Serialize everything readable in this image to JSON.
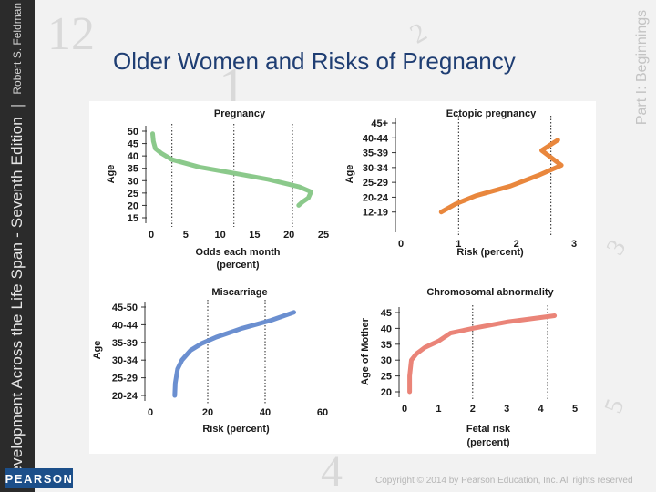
{
  "slide": {
    "title": "Older Women and Risks of Pregnancy",
    "sidebar_title": "Development Across the Life Span - Seventh Edition",
    "sidebar_separator": "|",
    "sidebar_author": "Robert S. Feldman",
    "part_label": "Part I: Beginnings",
    "publisher_logo": "PEARSON",
    "copyright": "Copyright © 2014 by Pearson Education, Inc. All rights reserved",
    "decorative_numbers": [
      "12",
      "1",
      "4",
      "2",
      "3",
      "5"
    ]
  },
  "colors": {
    "green": "#8bc98b",
    "orange": "#e9873d",
    "blue": "#6b8fd0",
    "red": "#ea8478",
    "axis": "#333333",
    "guide": "#222222",
    "text": "#1a1a1a"
  },
  "chart_data": [
    {
      "type": "line",
      "title": "Pregnancy",
      "xlabel": "Odds each month",
      "xlabel2": "(percent)",
      "ylabel": "Age",
      "xlim": [
        0,
        25
      ],
      "ylim": [
        15,
        50
      ],
      "xticks": [
        0,
        5,
        10,
        15,
        20,
        25
      ],
      "xtick_labels": [
        "0",
        "5",
        "10",
        "15",
        "20",
        "25"
      ],
      "yticks": [
        50,
        45,
        40,
        35,
        30,
        25,
        20,
        15
      ],
      "ytick_labels": [
        "50",
        "45",
        "40",
        "35",
        "30",
        "25",
        "20",
        "15"
      ],
      "ytick_dash": [
        false,
        false,
        true,
        true,
        false,
        false,
        true,
        true
      ],
      "guides_x": [
        3,
        12,
        20.5
      ],
      "x": [
        0.2,
        0.3,
        0.6,
        1.5,
        3,
        7,
        12,
        17,
        21.5,
        23.2,
        22.8,
        22.0,
        21.4
      ],
      "y": [
        49,
        46,
        43,
        41,
        38.5,
        35.5,
        33,
        30.5,
        27.5,
        25.5,
        23,
        21.5,
        20
      ]
    },
    {
      "type": "line",
      "title": "Ectopic pregnancy",
      "xlabel": "Risk (percent)",
      "ylabel": "Age",
      "xlim": [
        0,
        3
      ],
      "ylim": [
        0,
        7
      ],
      "xticks": [
        0,
        1,
        2,
        3
      ],
      "xtick_labels": [
        "0",
        "1",
        "2",
        "3"
      ],
      "yticks": [
        7,
        6,
        5,
        4,
        3,
        2,
        1
      ],
      "ytick_labels": [
        "45+",
        "40-44",
        "35-39",
        "30-34",
        "25-29",
        "20-24",
        "12-19"
      ],
      "guides_x": [
        1,
        2.6
      ],
      "x": [
        0.7,
        0.95,
        1.3,
        1.9,
        2.4,
        2.78,
        2.44,
        2.72
      ],
      "y": [
        1,
        1.55,
        2.1,
        2.75,
        3.5,
        4.15,
        5.15,
        5.85
      ]
    },
    {
      "type": "line",
      "title": "Miscarriage",
      "xlabel": "Risk (percent)",
      "ylabel": "Age",
      "xlim": [
        0,
        60
      ],
      "ylim": [
        1,
        6
      ],
      "xticks": [
        0,
        20,
        40,
        60
      ],
      "xtick_labels": [
        "0",
        "20",
        "40",
        "60"
      ],
      "yticks": [
        6,
        5,
        4,
        3,
        2,
        1
      ],
      "ytick_labels": [
        "45-50",
        "40-44",
        "35-39",
        "30-34",
        "25-29",
        "20-24"
      ],
      "ytick_dash": [
        true,
        true,
        true,
        false,
        true,
        true
      ],
      "guides_x": [
        20,
        40
      ],
      "x": [
        8.5,
        8.7,
        9.5,
        11,
        14,
        18,
        23,
        32,
        42,
        50
      ],
      "y": [
        1.0,
        1.7,
        2.5,
        3.0,
        3.55,
        3.95,
        4.3,
        4.8,
        5.25,
        5.7
      ]
    },
    {
      "type": "line",
      "title": "Chromosomal abnormality",
      "xlabel": "Fetal risk",
      "xlabel2": "(percent)",
      "ylabel": "Age of Mother",
      "xlim": [
        0,
        5
      ],
      "ylim": [
        20,
        45
      ],
      "xticks": [
        0,
        1,
        2,
        3,
        4,
        5
      ],
      "xtick_labels": [
        "0",
        "1",
        "2",
        "3",
        "4",
        "5"
      ],
      "yticks": [
        45,
        40,
        35,
        30,
        25,
        20
      ],
      "ytick_labels": [
        "45",
        "40",
        "35",
        "30",
        "25",
        "20"
      ],
      "guides_x": [
        2,
        4.2
      ],
      "x": [
        0.15,
        0.15,
        0.2,
        0.35,
        0.6,
        1.0,
        1.35,
        2.0,
        3.0,
        4.4
      ],
      "y": [
        20,
        25,
        30,
        32,
        34,
        36,
        38.5,
        40,
        42,
        44
      ]
    }
  ]
}
